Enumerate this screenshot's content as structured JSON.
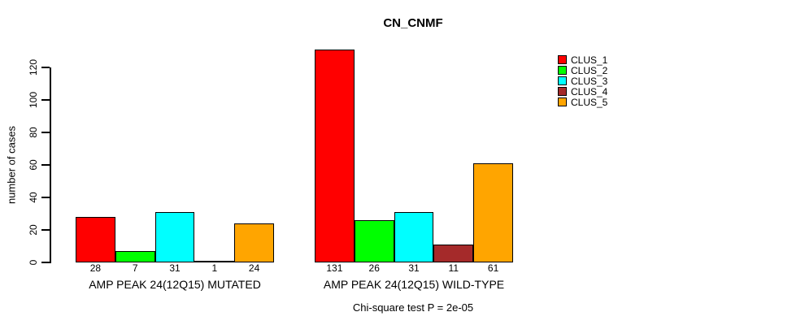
{
  "chart_data": {
    "type": "bar",
    "title": "CN_CNMF",
    "ylabel": "number of cases",
    "footnote": "Chi-square test P = 2e-05",
    "yticks": [
      0,
      20,
      40,
      60,
      80,
      100,
      120
    ],
    "ylim": [
      0,
      131
    ],
    "grid": false,
    "legend_position": "top-right",
    "bar_value_labels": true,
    "categories": [
      "AMP PEAK 24(12Q15) MUTATED",
      "AMP PEAK 24(12Q15) WILD-TYPE"
    ],
    "series": [
      {
        "name": "CLUS_1",
        "color": "#FF0000",
        "values": [
          28,
          131
        ]
      },
      {
        "name": "CLUS_2",
        "color": "#00FF00",
        "values": [
          7,
          26
        ]
      },
      {
        "name": "CLUS_3",
        "color": "#00FFFF",
        "values": [
          31,
          31
        ]
      },
      {
        "name": "CLUS_4",
        "color": "#A52A2A",
        "values": [
          1,
          11
        ]
      },
      {
        "name": "CLUS_5",
        "color": "#FFA500",
        "values": [
          24,
          61
        ]
      }
    ]
  }
}
